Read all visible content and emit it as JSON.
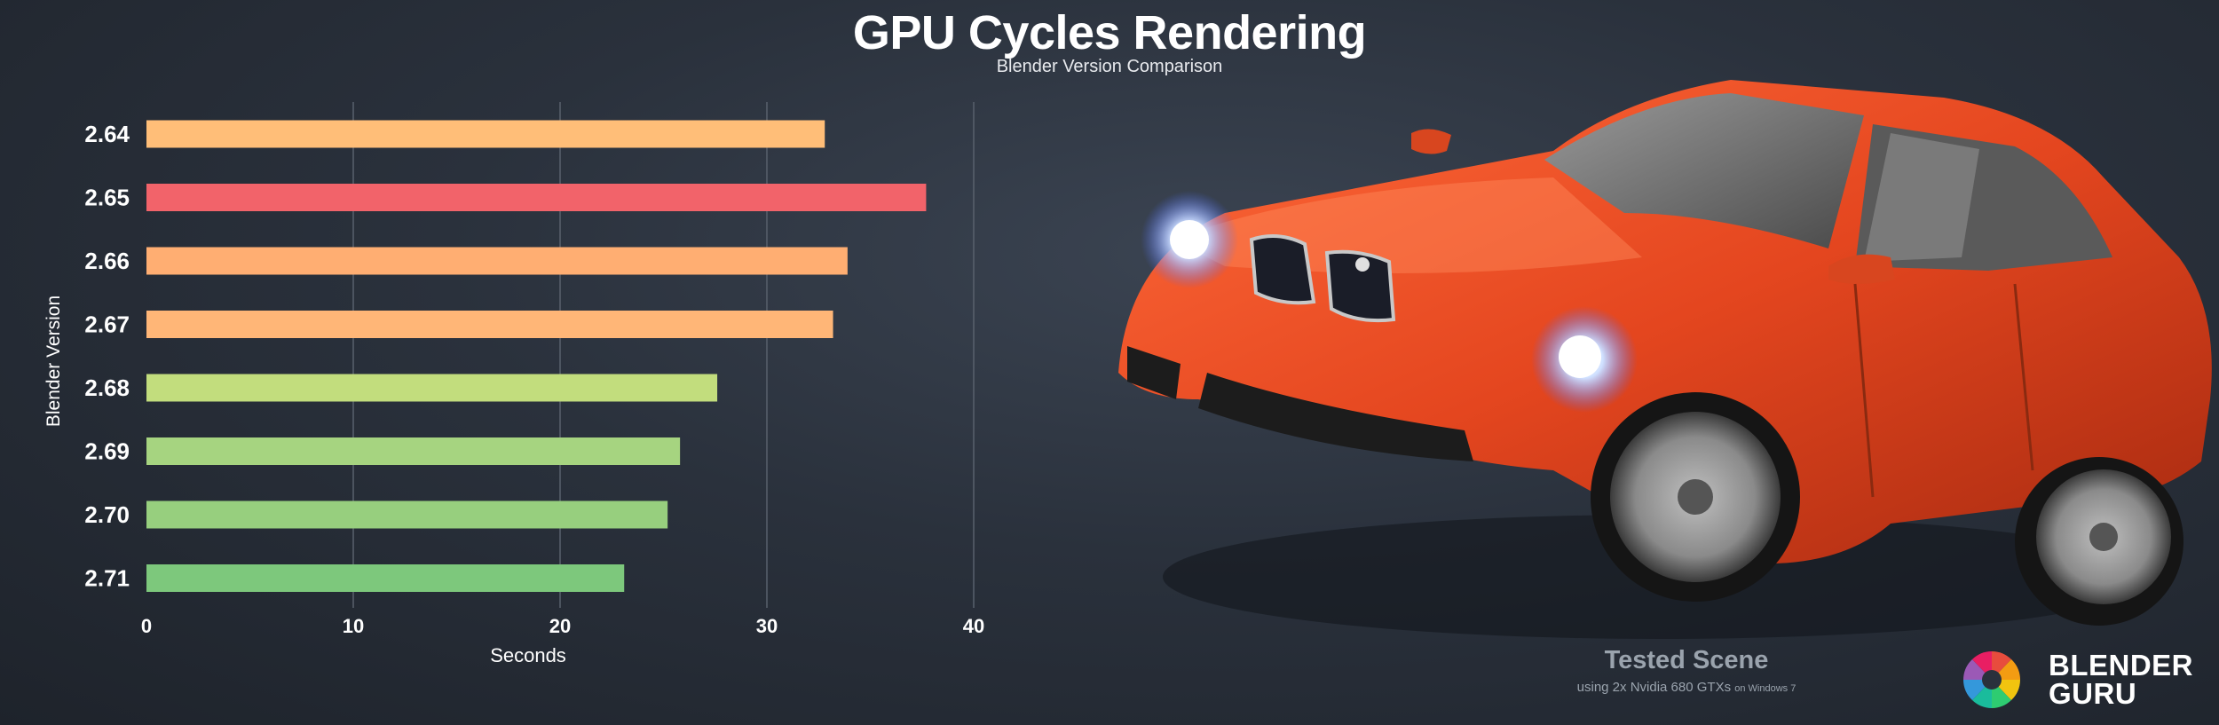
{
  "header": {
    "title": "GPU Cycles Rendering",
    "subtitle": "Blender Version Comparison"
  },
  "chart_data": {
    "type": "bar",
    "orientation": "horizontal",
    "categories": [
      "2.64",
      "2.65",
      "2.66",
      "2.67",
      "2.68",
      "2.69",
      "2.70",
      "2.71"
    ],
    "values": [
      32.8,
      37.7,
      33.9,
      33.2,
      27.6,
      25.8,
      25.2,
      23.1
    ],
    "colors": [
      "#ffbe78",
      "#f2636a",
      "#ffae72",
      "#ffb677",
      "#c2dd7d",
      "#a6d480",
      "#97cf7e",
      "#7dc87c"
    ],
    "xlabel": "Seconds",
    "ylabel": "Blender Version",
    "xlim": [
      0,
      40
    ],
    "xticks": [
      0,
      10,
      20,
      30,
      40
    ],
    "grid": true
  },
  "scene": {
    "image": "orange-car-render",
    "title": "Tested Scene",
    "subtitle": "using 2x Nvidia 680 GTXs",
    "subtitle_small": "on Windows 7"
  },
  "brand": {
    "line1": "BLENDER",
    "line2": "GURU",
    "logo": "blender-guru-logo"
  }
}
